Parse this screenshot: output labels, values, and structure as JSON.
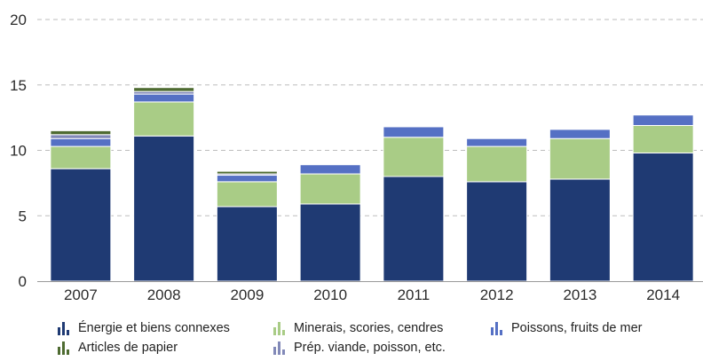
{
  "chart_data": {
    "type": "bar",
    "stacked": true,
    "categories": [
      "2007",
      "2008",
      "2009",
      "2010",
      "2011",
      "2012",
      "2013",
      "2014"
    ],
    "ylim": [
      0,
      20
    ],
    "yticks": [
      "0",
      "5",
      "10",
      "15",
      "20"
    ],
    "grid": "horizontal-dashed",
    "legend_position": "bottom",
    "title": "",
    "xlabel": "",
    "ylabel": "",
    "series": [
      {
        "name": "Énergie et biens connexes",
        "color": "#1f3a73",
        "values": [
          8.6,
          11.1,
          5.7,
          5.9,
          8.0,
          7.6,
          7.8,
          9.8
        ]
      },
      {
        "name": "Minerais, scories, cendres",
        "color": "#a9cc86",
        "values": [
          1.7,
          2.6,
          1.9,
          2.3,
          3.0,
          2.7,
          3.1,
          2.1
        ]
      },
      {
        "name": "Poissons, fruits de mer",
        "color": "#5570c4",
        "values": [
          0.6,
          0.6,
          0.5,
          0.7,
          0.8,
          0.6,
          0.7,
          0.8
        ]
      },
      {
        "name": "Prép. viande, poisson, etc.",
        "color": "#8289b8",
        "values": [
          0.3,
          0.2,
          0.1,
          0.0,
          0.0,
          0.0,
          0.0,
          0.0
        ]
      },
      {
        "name": "Articles de papier",
        "color": "#4e6b31",
        "values": [
          0.3,
          0.3,
          0.2,
          0.0,
          0.0,
          0.0,
          0.0,
          0.0
        ]
      }
    ],
    "legend_rows": [
      [
        "Énergie et biens connexes",
        "Minerais, scories, cendres",
        "Poissons, fruits de mer"
      ],
      [
        "Articles de papier",
        "Prép. viande, poisson, etc."
      ]
    ]
  }
}
